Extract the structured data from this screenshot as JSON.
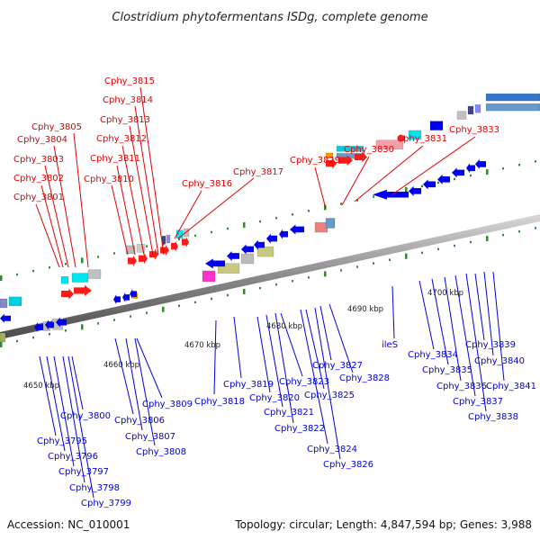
{
  "title": "Clostridium phytofermentans ISDg, complete genome",
  "footer": {
    "accession": "Accession: NC_010001",
    "info": "Topology: circular; Length: 4,847,594 bp; Genes: 3,988"
  },
  "colors": {
    "top_label": "#e00000",
    "bottom_label": "#0000dd",
    "backbone": "#7a7a7a",
    "tick": "#2e8b2e"
  },
  "kbp_markers": [
    "4650 kbp",
    "4660 kbp",
    "4670 kbp",
    "4680 kbp",
    "4690 kbp",
    "4700 kbp"
  ],
  "top_labels": [
    "Cphy_3801",
    "Cphy_3802",
    "Cphy_3803",
    "Cphy_3804",
    "Cphy_3805",
    "Cphy_3810",
    "Cphy_3811",
    "Cphy_3812",
    "Cphy_3813",
    "Cphy_3814",
    "Cphy_3815",
    "Cphy_3816",
    "Cphy_3817",
    "Cphy_3829",
    "Cphy_3830",
    "Cphy_3831",
    "Cphy_3833"
  ],
  "bottom_labels": [
    "Cphy_3795",
    "Cphy_3796",
    "Cphy_3797",
    "Cphy_3798",
    "Cphy_3799",
    "Cphy_3800",
    "Cphy_3806",
    "Cphy_3807",
    "Cphy_3808",
    "Cphy_3809",
    "Cphy_3818",
    "Cphy_3819",
    "Cphy_3820",
    "Cphy_3821",
    "Cphy_3822",
    "Cphy_3823",
    "Cphy_3824",
    "Cphy_3825",
    "Cphy_3826",
    "Cphy_3827",
    "Cphy_3828",
    "ileS",
    "Cphy_3834",
    "Cphy_3835",
    "Cphy_3836",
    "Cphy_3837",
    "Cphy_3838",
    "Cphy_3839",
    "Cphy_3840",
    "Cphy_3841"
  ]
}
